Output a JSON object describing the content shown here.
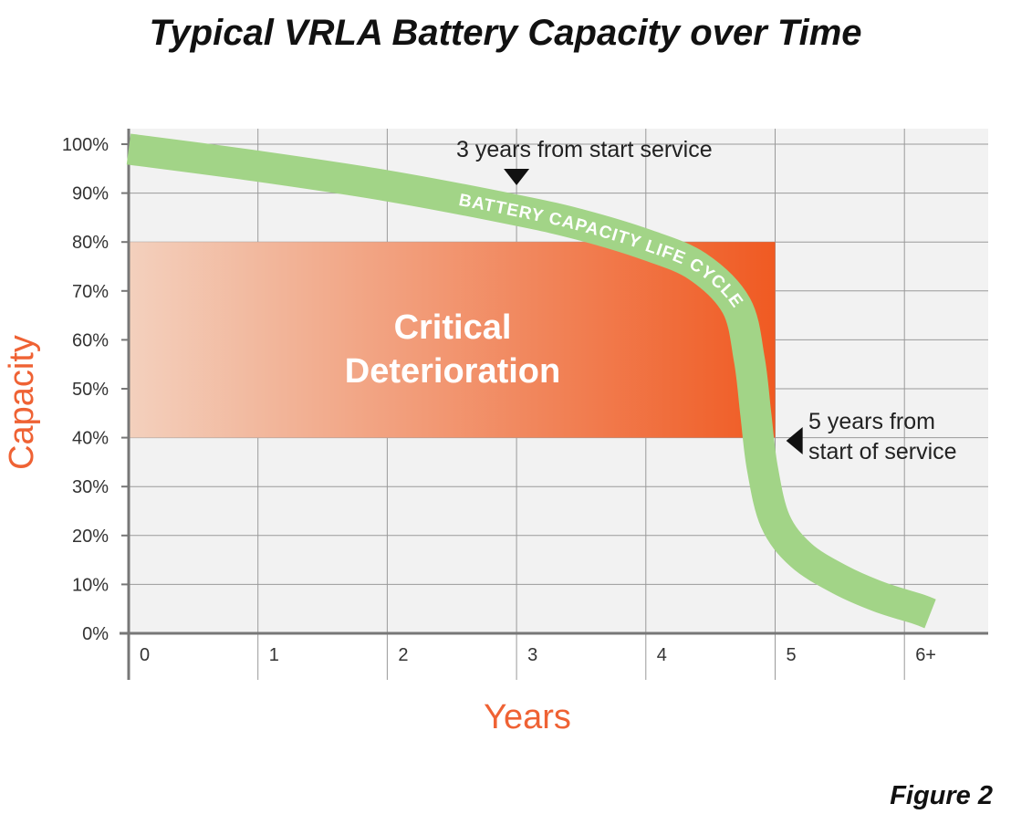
{
  "figure_caption": "Figure 2",
  "colors": {
    "accent_orange": "#ef6234",
    "band_dark": "#f05a22",
    "band_light": "#f3d0bd",
    "curve_green": "#a2d487",
    "plot_bg": "#f2f2f2",
    "grid": "#9a9a9a",
    "axis": "#777777"
  },
  "chart_data": {
    "type": "line",
    "title": "Typical VRLA Battery Capacity over Time",
    "xlabel": "Years",
    "ylabel": "Capacity",
    "x_categories": [
      "0",
      "1",
      "2",
      "3",
      "4",
      "5",
      "6+"
    ],
    "y_ticks": [
      "0%",
      "10%",
      "20%",
      "30%",
      "40%",
      "50%",
      "60%",
      "70%",
      "80%",
      "90%",
      "100%"
    ],
    "xlim": [
      0,
      6.5
    ],
    "ylim": [
      0,
      100
    ],
    "grid": true,
    "series": [
      {
        "name": "BATTERY CAPACITY LIFE CYCLE",
        "x": [
          0,
          1,
          2,
          3,
          3.5,
          4,
          4.4,
          4.7,
          4.8,
          4.85,
          4.9,
          5.0,
          5.2,
          5.5,
          5.8,
          6.1,
          6.2
        ],
        "y": [
          99,
          95.5,
          91.5,
          86.5,
          83.5,
          79.5,
          75,
          67,
          56,
          45,
          34,
          23,
          16,
          11,
          7.5,
          5,
          4
        ]
      }
    ],
    "band": {
      "label_line1": "Critical",
      "label_line2": "Deterioration",
      "x_range": [
        0,
        5
      ],
      "y_range": [
        40,
        80
      ]
    },
    "annotations": [
      {
        "text_lines": [
          "3 years from start service"
        ],
        "x": 3,
        "y": 93,
        "pointer": "down"
      },
      {
        "text_lines": [
          "5 years from",
          "start of service"
        ],
        "x": 5.1,
        "y": 39,
        "pointer": "left"
      }
    ]
  }
}
